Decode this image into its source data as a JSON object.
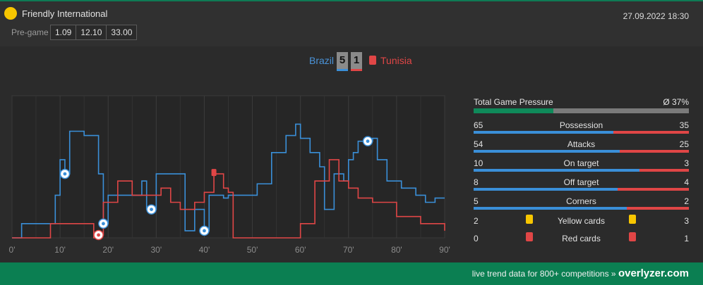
{
  "header": {
    "competition": "Friendly International",
    "datetime": "27.09.2022 18:30",
    "pregame_label": "Pre-game",
    "odds": [
      "1.09",
      "12.10",
      "33.00"
    ]
  },
  "match": {
    "home_team": "Brazil",
    "away_team": "Tunisia",
    "home_score": "5",
    "away_score": "1"
  },
  "colors": {
    "home": "#3a8fd8",
    "away": "#e04646",
    "accent_green": "#0b7f52",
    "competition_dot": "#f7c600"
  },
  "chart_data": {
    "type": "line",
    "x_ticks": [
      "0'",
      "10'",
      "20'",
      "30'",
      "40'",
      "50'",
      "60'",
      "70'",
      "80'",
      "90'"
    ],
    "xlim": [
      0,
      90
    ],
    "ylim": [
      0,
      100
    ],
    "series": [
      {
        "name": "Brazil",
        "color": "#3a8fd8",
        "points": [
          [
            0,
            0
          ],
          [
            2,
            10
          ],
          [
            8,
            10
          ],
          [
            9,
            30
          ],
          [
            10,
            55
          ],
          [
            11,
            45
          ],
          [
            12,
            75
          ],
          [
            15,
            72
          ],
          [
            18,
            45
          ],
          [
            19,
            10
          ],
          [
            20,
            30
          ],
          [
            26,
            30
          ],
          [
            27,
            40
          ],
          [
            28,
            20
          ],
          [
            30,
            45
          ],
          [
            35,
            45
          ],
          [
            36,
            5
          ],
          [
            38,
            20
          ],
          [
            40,
            5
          ],
          [
            41,
            30
          ],
          [
            44,
            28
          ],
          [
            45,
            30
          ],
          [
            46,
            30
          ],
          [
            50,
            30
          ],
          [
            51,
            38
          ],
          [
            54,
            60
          ],
          [
            57,
            72
          ],
          [
            59,
            80
          ],
          [
            60,
            70
          ],
          [
            62,
            60
          ],
          [
            64,
            50
          ],
          [
            65,
            20
          ],
          [
            67,
            45
          ],
          [
            69,
            40
          ],
          [
            70,
            55
          ],
          [
            71,
            60
          ],
          [
            72,
            68
          ],
          [
            75,
            70
          ],
          [
            76,
            55
          ],
          [
            78,
            40
          ],
          [
            81,
            35
          ],
          [
            84,
            30
          ],
          [
            86,
            25
          ],
          [
            88,
            28
          ],
          [
            90,
            28
          ]
        ]
      },
      {
        "name": "Tunisia",
        "color": "#e04646",
        "points": [
          [
            0,
            0
          ],
          [
            8,
            10
          ],
          [
            12,
            10
          ],
          [
            17,
            0
          ],
          [
            18,
            2
          ],
          [
            19,
            25
          ],
          [
            22,
            40
          ],
          [
            24,
            40
          ],
          [
            25,
            30
          ],
          [
            28,
            30
          ],
          [
            31,
            35
          ],
          [
            33,
            25
          ],
          [
            35,
            20
          ],
          [
            38,
            25
          ],
          [
            40,
            32
          ],
          [
            42,
            45
          ],
          [
            44,
            35
          ],
          [
            45,
            32
          ],
          [
            46,
            0
          ],
          [
            58,
            0
          ],
          [
            60,
            10
          ],
          [
            63,
            40
          ],
          [
            66,
            55
          ],
          [
            68,
            40
          ],
          [
            70,
            35
          ],
          [
            72,
            28
          ],
          [
            75,
            25
          ],
          [
            80,
            15
          ],
          [
            85,
            10
          ],
          [
            89,
            10
          ],
          [
            90,
            5
          ]
        ]
      }
    ],
    "goal_markers": [
      {
        "team": "Brazil",
        "minute": 11
      },
      {
        "team": "Tunisia",
        "minute": 18
      },
      {
        "team": "Brazil",
        "minute": 19
      },
      {
        "team": "Brazil",
        "minute": 29
      },
      {
        "team": "Brazil",
        "minute": 40
      },
      {
        "team": "Brazil",
        "minute": 74
      }
    ],
    "card_markers": [
      {
        "team": "Tunisia",
        "minute": 42,
        "type": "red"
      }
    ]
  },
  "stats": {
    "total_pressure_label": "Total Game Pressure",
    "total_pressure_value": "Ø 37%",
    "total_pressure_fraction": 0.37,
    "rows": [
      {
        "label": "Possession",
        "home": "65",
        "away": "35",
        "home_share": 0.65
      },
      {
        "label": "Attacks",
        "home": "54",
        "away": "25",
        "home_share": 0.68
      },
      {
        "label": "On target",
        "home": "10",
        "away": "3",
        "home_share": 0.77
      },
      {
        "label": "Off target",
        "home": "8",
        "away": "4",
        "home_share": 0.67
      },
      {
        "label": "Corners",
        "home": "5",
        "away": "2",
        "home_share": 0.71
      }
    ],
    "cards": [
      {
        "label": "Yellow cards",
        "home": "2",
        "away": "3",
        "icon": "yellow-card-icon",
        "color": "#f7c600"
      },
      {
        "label": "Red cards",
        "home": "0",
        "away": "1",
        "icon": "red-card-icon",
        "color": "#e04646"
      }
    ]
  },
  "footer": {
    "text": "live trend data for 800+ competitions »",
    "brand": "overlyzer.com"
  }
}
